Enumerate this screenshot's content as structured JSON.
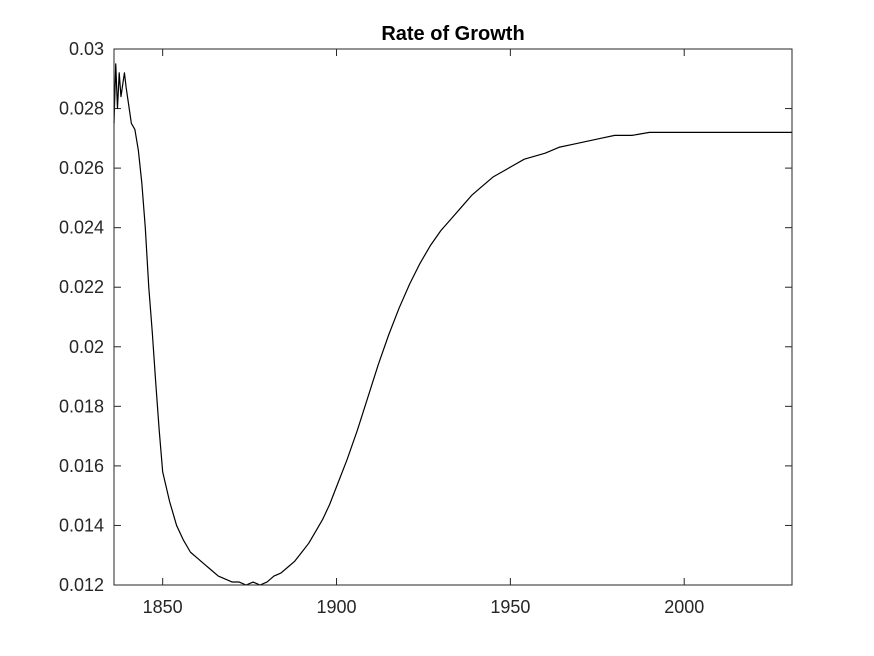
{
  "chart_data": {
    "type": "line",
    "title": "Rate of Growth",
    "xlabel": "",
    "ylabel": "",
    "xlim": [
      1836,
      2031
    ],
    "ylim": [
      0.012,
      0.03
    ],
    "xticks": [
      1850,
      1900,
      1950,
      2000
    ],
    "xtick_labels": [
      "1850",
      "1900",
      "1950",
      "2000"
    ],
    "yticks": [
      0.012,
      0.014,
      0.016,
      0.018,
      0.02,
      0.022,
      0.024,
      0.026,
      0.028,
      0.03
    ],
    "ytick_labels": [
      "0.012",
      "0.014",
      "0.016",
      "0.018",
      "0.02",
      "0.022",
      "0.024",
      "0.026",
      "0.028",
      "0.03"
    ],
    "grid": false,
    "legend": "none",
    "line_color": "#000000",
    "series": [
      {
        "x": [
          1836,
          1836.5,
          1837,
          1837.5,
          1838,
          1839,
          1839.5,
          1840,
          1841,
          1842,
          1843,
          1844,
          1845,
          1846,
          1847,
          1848,
          1849,
          1850,
          1852,
          1854,
          1856,
          1858,
          1860,
          1862,
          1864,
          1866,
          1868,
          1870,
          1872,
          1874,
          1876,
          1878,
          1880,
          1882,
          1884,
          1886,
          1888,
          1890,
          1892,
          1894,
          1896,
          1898,
          1900,
          1903,
          1906,
          1909,
          1912,
          1915,
          1918,
          1921,
          1924,
          1927,
          1930,
          1933,
          1936,
          1939,
          1942,
          1945,
          1948,
          1951,
          1954,
          1957,
          1960,
          1964,
          1968,
          1972,
          1976,
          1980,
          1985,
          1990,
          1995,
          2000,
          2005,
          2010,
          2015,
          2020,
          2025,
          2031
        ],
        "y": [
          0.0275,
          0.0295,
          0.028,
          0.0292,
          0.0284,
          0.0292,
          0.0287,
          0.0283,
          0.0275,
          0.0273,
          0.0266,
          0.0255,
          0.024,
          0.022,
          0.0205,
          0.0188,
          0.0172,
          0.0158,
          0.0148,
          0.014,
          0.0135,
          0.0131,
          0.0129,
          0.0127,
          0.0125,
          0.0123,
          0.0122,
          0.0121,
          0.0121,
          0.012,
          0.0121,
          0.012,
          0.0121,
          0.0123,
          0.0124,
          0.0126,
          0.0128,
          0.0131,
          0.0134,
          0.0138,
          0.0142,
          0.0147,
          0.0153,
          0.0162,
          0.0172,
          0.0183,
          0.0194,
          0.0204,
          0.0213,
          0.0221,
          0.0228,
          0.0234,
          0.0239,
          0.0243,
          0.0247,
          0.0251,
          0.0254,
          0.0257,
          0.0259,
          0.0261,
          0.0263,
          0.0264,
          0.0265,
          0.0267,
          0.0268,
          0.0269,
          0.027,
          0.0271,
          0.0271,
          0.0272,
          0.0272,
          0.0272,
          0.0272,
          0.0272,
          0.0272,
          0.0272,
          0.0272,
          0.0272
        ]
      }
    ]
  }
}
